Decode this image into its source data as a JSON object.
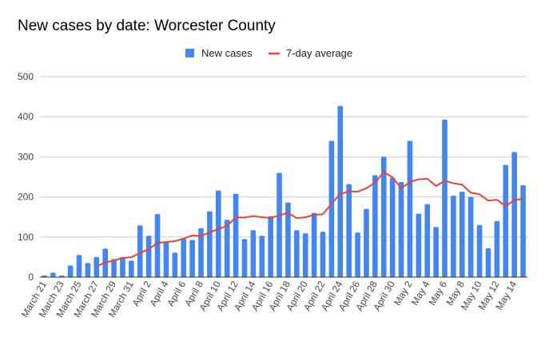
{
  "chart_data": {
    "type": "bar",
    "title": "New cases by date: Worcester County",
    "xlabel": "",
    "ylabel": "",
    "ylim": [
      0,
      500
    ],
    "yticks": [
      0,
      100,
      200,
      300,
      400,
      500
    ],
    "grid": true,
    "legend_position": "top-center",
    "categories": [
      "March 21",
      "March 22",
      "March 23",
      "March 24",
      "March 25",
      "March 26",
      "March 27",
      "March 28",
      "March 29",
      "March 30",
      "March 31",
      "April 1",
      "April 2",
      "April 3",
      "April 4",
      "April 5",
      "April 6",
      "April 7",
      "April 8",
      "April 9",
      "April 10",
      "April 11",
      "April 12",
      "April 13",
      "April 14",
      "April 15",
      "April 16",
      "April 17",
      "April 18",
      "April 19",
      "April 20",
      "April 21",
      "April 22",
      "April 23",
      "April 24",
      "April 25",
      "April 26",
      "April 27",
      "April 28",
      "April 29",
      "April 30",
      "May 1",
      "May 2",
      "May 3",
      "May 4",
      "May 5",
      "May 6",
      "May 7",
      "May 8",
      "May 9",
      "May 10",
      "May 11",
      "May 12",
      "May 13",
      "May 14",
      "May 15"
    ],
    "series": [
      {
        "name": "New cases",
        "type": "bar",
        "color": "#4285f4",
        "values": [
          4,
          11,
          4,
          29,
          55,
          35,
          50,
          71,
          45,
          50,
          41,
          129,
          103,
          157,
          87,
          61,
          96,
          93,
          122,
          164,
          216,
          143,
          208,
          95,
          117,
          103,
          152,
          260,
          186,
          117,
          109,
          160,
          113,
          340,
          427,
          232,
          111,
          170,
          254,
          300,
          248,
          237,
          340,
          158,
          182,
          125,
          393,
          203,
          213,
          200,
          130,
          72,
          140,
          280,
          312,
          229
        ]
      },
      {
        "name": "7-day average",
        "type": "line",
        "color": "#ea4335",
        "window": 7
      }
    ]
  }
}
